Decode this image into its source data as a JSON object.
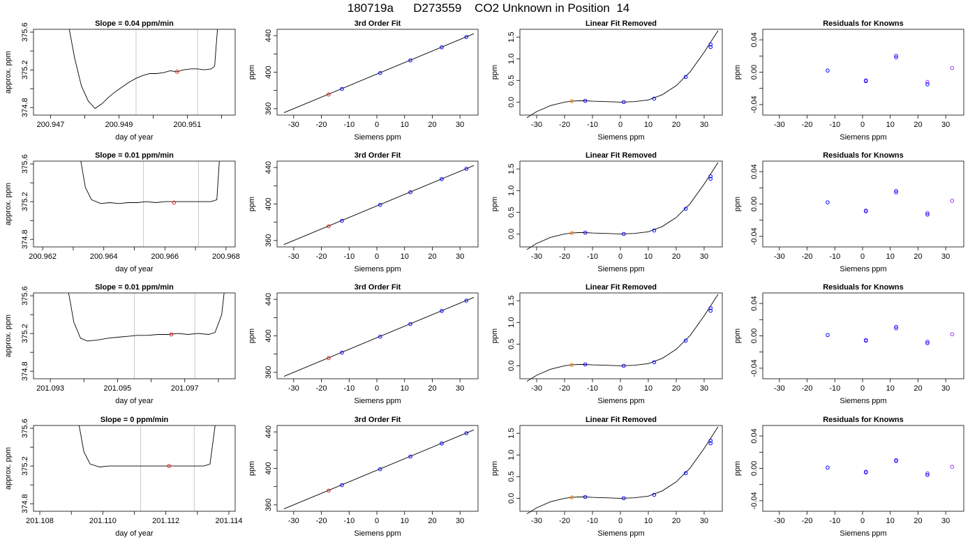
{
  "title": "180719a      D273559    CO2 Unknown in Position  14",
  "panel_titles": {
    "fit": "3rd Order Fit",
    "linear_removed": "Linear Fit Removed",
    "residuals": "Residuals for Knowns"
  },
  "axis_labels": {
    "time_x": "day of year",
    "time_y": "approx. ppm",
    "siemens_x": "Siemens ppm",
    "ppm_y": "ppm"
  },
  "colors": {
    "line": "#000000",
    "unknown_point": "#e41a1c",
    "standard_point": "#ff7f00",
    "known_point": "#0000ff",
    "residual_a": "#0000ff",
    "residual_b": "#9b30ff",
    "window_line": "#c8c8c8"
  },
  "chart_data": [
    {
      "type": "line",
      "row": 1,
      "title": "Slope =  0.04  ppm/min",
      "xlabel": "day of year",
      "ylabel": "approx. ppm",
      "xlim": [
        200.9465,
        200.9524
      ],
      "ylim": [
        374.72,
        375.63
      ],
      "x_ticks": [
        200.947,
        200.949,
        200.951
      ],
      "x_ticks_minor": [
        200.948,
        200.95,
        200.952
      ],
      "x_tick_labels": [
        "200.947",
        "200.949",
        "200.951"
      ],
      "y_ticks": [
        374.8,
        375.2,
        375.6
      ],
      "y_ticks_minor": [
        375.0,
        375.4
      ],
      "y_tick_labels": [
        "374.8",
        "375.2",
        "375.6"
      ],
      "window": [
        200.9495,
        200.9513
      ],
      "marker": {
        "x": 200.9507,
        "y": 375.18
      },
      "trace": [
        [
          200.9475,
          375.72
        ],
        [
          200.9477,
          375.33
        ],
        [
          200.9479,
          375.03
        ],
        [
          200.9481,
          374.87
        ],
        [
          200.9483,
          374.79
        ],
        [
          200.9485,
          374.84
        ],
        [
          200.9487,
          374.91
        ],
        [
          200.9489,
          374.97
        ],
        [
          200.9491,
          375.02
        ],
        [
          200.9493,
          375.07
        ],
        [
          200.9495,
          375.11
        ],
        [
          200.9497,
          375.14
        ],
        [
          200.9499,
          375.16
        ],
        [
          200.9501,
          375.16
        ],
        [
          200.9503,
          375.17
        ],
        [
          200.9505,
          375.19
        ],
        [
          200.9507,
          375.18
        ],
        [
          200.9509,
          375.2
        ],
        [
          200.9511,
          375.21
        ],
        [
          200.9513,
          375.21
        ],
        [
          200.9515,
          375.2
        ],
        [
          200.9517,
          375.21
        ],
        [
          200.9518,
          375.24
        ],
        [
          200.9519,
          375.72
        ]
      ]
    },
    {
      "type": "line",
      "row": 2,
      "title": "Slope =  0.01  ppm/min",
      "xlabel": "day of year",
      "ylabel": "approx. ppm",
      "xlim": [
        200.9617,
        200.9683
      ],
      "ylim": [
        374.72,
        375.63
      ],
      "x_ticks": [
        200.962,
        200.964,
        200.966,
        200.968
      ],
      "x_ticks_minor": [
        200.963,
        200.965,
        200.967
      ],
      "x_tick_labels": [
        "200.962",
        "200.964",
        "200.966",
        "200.968"
      ],
      "y_ticks": [
        374.8,
        375.2,
        375.6
      ],
      "y_ticks_minor": [
        375.0,
        375.4
      ],
      "y_tick_labels": [
        "374.8",
        "375.2",
        "375.6"
      ],
      "window": [
        200.9653,
        200.9671
      ],
      "marker": {
        "x": 200.9663,
        "y": 375.19
      },
      "trace": [
        [
          200.9632,
          375.72
        ],
        [
          200.9634,
          375.35
        ],
        [
          200.9636,
          375.22
        ],
        [
          200.9639,
          375.18
        ],
        [
          200.9642,
          375.19
        ],
        [
          200.9645,
          375.18
        ],
        [
          200.9648,
          375.19
        ],
        [
          200.9651,
          375.19
        ],
        [
          200.9654,
          375.2
        ],
        [
          200.9657,
          375.19
        ],
        [
          200.966,
          375.2
        ],
        [
          200.9663,
          375.2
        ],
        [
          200.9666,
          375.2
        ],
        [
          200.9669,
          375.2
        ],
        [
          200.9672,
          375.2
        ],
        [
          200.9675,
          375.2
        ],
        [
          200.9677,
          375.22
        ],
        [
          200.9678,
          375.72
        ]
      ]
    },
    {
      "type": "line",
      "row": 3,
      "title": "Slope =  0.01  ppm/min",
      "xlabel": "day of year",
      "ylabel": "approx. ppm",
      "xlim": [
        201.0925,
        201.0985
      ],
      "ylim": [
        374.72,
        375.63
      ],
      "x_ticks": [
        201.093,
        201.095,
        201.097
      ],
      "x_ticks_minor": [
        201.094,
        201.096,
        201.098
      ],
      "x_tick_labels": [
        "201.093",
        "201.095",
        "201.097"
      ],
      "y_ticks": [
        374.8,
        375.2,
        375.6
      ],
      "y_ticks_minor": [
        375.0,
        375.4
      ],
      "y_tick_labels": [
        "374.8",
        "375.2",
        "375.6"
      ],
      "window": [
        201.0955,
        201.0973
      ],
      "marker": {
        "x": 201.0966,
        "y": 375.19
      },
      "trace": [
        [
          201.0935,
          375.72
        ],
        [
          201.0937,
          375.32
        ],
        [
          201.0939,
          375.15
        ],
        [
          201.0941,
          375.12
        ],
        [
          201.0944,
          375.13
        ],
        [
          201.0947,
          375.15
        ],
        [
          201.095,
          375.16
        ],
        [
          201.0953,
          375.17
        ],
        [
          201.0956,
          375.18
        ],
        [
          201.0959,
          375.18
        ],
        [
          201.0962,
          375.19
        ],
        [
          201.0965,
          375.19
        ],
        [
          201.0968,
          375.2
        ],
        [
          201.0971,
          375.19
        ],
        [
          201.0974,
          375.2
        ],
        [
          201.0977,
          375.19
        ],
        [
          201.0979,
          375.21
        ],
        [
          201.0981,
          375.4
        ],
        [
          201.0982,
          375.72
        ]
      ]
    },
    {
      "type": "line",
      "row": 4,
      "title": "Slope =  0  ppm/min",
      "xlabel": "day of year",
      "ylabel": "approx. ppm",
      "xlim": [
        201.1078,
        201.1142
      ],
      "ylim": [
        374.72,
        375.63
      ],
      "x_ticks": [
        201.108,
        201.11,
        201.112,
        201.114
      ],
      "x_ticks_minor": [
        201.109,
        201.111,
        201.113
      ],
      "x_tick_labels": [
        "201.108",
        "201.110",
        "201.112",
        "201.114"
      ],
      "y_ticks": [
        374.8,
        375.2,
        375.6
      ],
      "y_ticks_minor": [
        375.0,
        375.4
      ],
      "y_tick_labels": [
        "374.8",
        "375.2",
        "375.6"
      ],
      "window": [
        201.1112,
        201.1129
      ],
      "marker": {
        "x": 201.1121,
        "y": 375.2
      },
      "trace": [
        [
          201.1092,
          375.72
        ],
        [
          201.1094,
          375.35
        ],
        [
          201.1096,
          375.22
        ],
        [
          201.1099,
          375.19
        ],
        [
          201.1102,
          375.2
        ],
        [
          201.1105,
          375.2
        ],
        [
          201.1108,
          375.2
        ],
        [
          201.1111,
          375.2
        ],
        [
          201.1114,
          375.2
        ],
        [
          201.1117,
          375.2
        ],
        [
          201.112,
          375.2
        ],
        [
          201.1123,
          375.2
        ],
        [
          201.1126,
          375.2
        ],
        [
          201.1129,
          375.2
        ],
        [
          201.1132,
          375.2
        ],
        [
          201.1134,
          375.22
        ],
        [
          201.1136,
          375.72
        ]
      ]
    },
    {
      "type": "scatter",
      "title": "3rd Order Fit",
      "xlabel": "Siemens ppm",
      "ylabel": "ppm",
      "xlim": [
        -36,
        36.5
      ],
      "ylim": [
        353,
        447
      ],
      "x_ticks": [
        -30,
        -20,
        -10,
        0,
        10,
        20,
        30
      ],
      "x_tick_labels": [
        "-30",
        "-20",
        "-10",
        "0",
        "10",
        "20",
        "30"
      ],
      "y_ticks": [
        360,
        400,
        440
      ],
      "y_ticks_minor": [
        380,
        420
      ],
      "y_tick_labels": [
        "360",
        "400",
        "440"
      ],
      "fit_line": [
        [
          -33.5,
          355.6
        ],
        [
          35,
          442.2
        ]
      ],
      "unknown": [
        -17.4,
        375.6
      ],
      "knowns_x": [
        -12.6,
        1.2,
        12.1,
        23.4,
        32.3
      ],
      "knowns_y": [
        381.6,
        399.1,
        412.9,
        427.3,
        438.6
      ]
    },
    {
      "type": "line",
      "title": "Linear Fit Removed",
      "xlabel": "Siemens ppm",
      "ylabel": "ppm",
      "xlim": [
        -36,
        36.5
      ],
      "ylim": [
        -0.3,
        1.68
      ],
      "x_ticks": [
        -30,
        -20,
        -10,
        0,
        10,
        20,
        30
      ],
      "x_tick_labels": [
        "-30",
        "-20",
        "-10",
        "0",
        "10",
        "20",
        "30"
      ],
      "y_ticks": [
        0.0,
        0.5,
        1.0,
        1.5
      ],
      "y_tick_labels": [
        "0.0",
        "0.5",
        "1.0",
        "1.5"
      ],
      "curve_x": [
        -33.5,
        -30,
        -25,
        -20,
        -17.5,
        -15,
        -12.5,
        -10,
        -5,
        0,
        5,
        10,
        15,
        20,
        25,
        30,
        33,
        35
      ],
      "curve_y": [
        -0.36,
        -0.22,
        -0.08,
        0.0,
        0.02,
        0.03,
        0.03,
        0.02,
        0.01,
        0.0,
        0.01,
        0.05,
        0.17,
        0.38,
        0.7,
        1.15,
        1.45,
        1.65
      ],
      "unknown": [
        -17.4,
        0.02
      ],
      "knowns_x": [
        -12.6,
        1.2,
        12.1,
        23.4,
        32.3,
        32.3
      ],
      "knowns_y": [
        0.03,
        0.0,
        0.08,
        0.58,
        1.27,
        1.33
      ]
    },
    {
      "type": "scatter",
      "title": "Residuals for Knowns",
      "xlabel": "Siemens ppm",
      "ylabel": "ppm",
      "xlim": [
        -36,
        36.5
      ],
      "ylim": [
        -0.053,
        0.053
      ],
      "x_ticks": [
        -30,
        -20,
        -10,
        0,
        10,
        20,
        30
      ],
      "x_tick_labels": [
        "-30",
        "-20",
        "-10",
        "0",
        "10",
        "20",
        "30"
      ],
      "y_ticks": [
        -0.04,
        0.0,
        0.04
      ],
      "y_ticks_minor": [
        -0.02,
        0.02
      ],
      "y_tick_labels": [
        "-0.04",
        "0.00",
        "0.04"
      ],
      "rows": [
        {
          "x": [
            -12.6,
            1.2,
            1.2,
            12.1,
            12.1,
            23.4,
            23.4,
            32.3
          ],
          "y": [
            0.002,
            -0.01,
            -0.011,
            0.018,
            0.02,
            -0.012,
            -0.015,
            0.005
          ]
        },
        {
          "x": [
            -12.6,
            1.2,
            1.2,
            12.1,
            12.1,
            23.4,
            23.4,
            32.3
          ],
          "y": [
            0.002,
            -0.008,
            -0.009,
            0.014,
            0.016,
            -0.011,
            -0.013,
            0.004
          ]
        },
        {
          "x": [
            -12.6,
            1.2,
            1.2,
            12.1,
            12.1,
            23.4,
            23.4,
            32.3
          ],
          "y": [
            0.001,
            -0.005,
            -0.006,
            0.009,
            0.011,
            -0.007,
            -0.009,
            0.002
          ]
        },
        {
          "x": [
            -12.6,
            1.2,
            1.2,
            12.1,
            12.1,
            23.4,
            23.4,
            32.3
          ],
          "y": [
            0.001,
            -0.004,
            -0.005,
            0.009,
            0.01,
            -0.006,
            -0.008,
            0.002
          ]
        }
      ]
    }
  ]
}
